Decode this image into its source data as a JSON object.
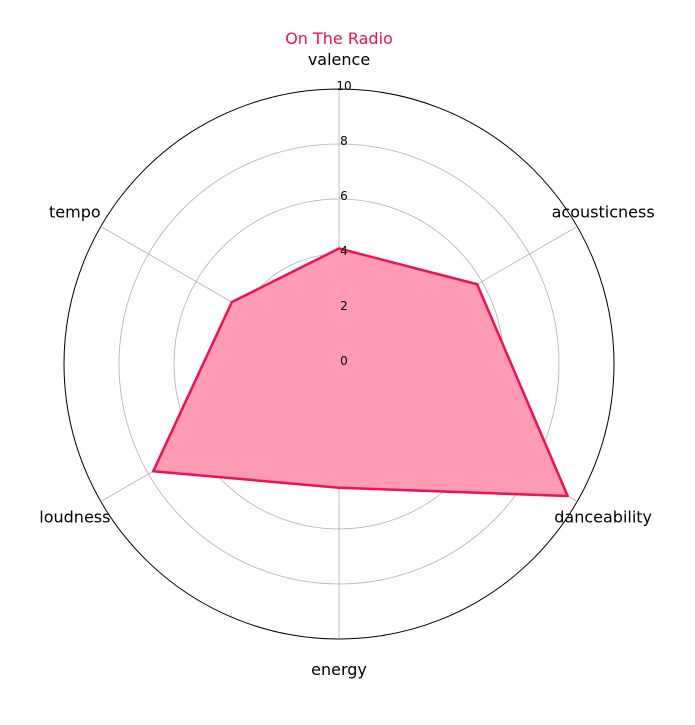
{
  "chart_data": {
    "type": "radar",
    "title": "On The Radio",
    "title_color": "#F0114F",
    "axes": [
      "valence",
      "acousticness",
      "danceability",
      "energy",
      "loudness",
      "tempo"
    ],
    "series": [
      {
        "values": [
          4.2,
          5.8,
          9.6,
          4.5,
          7.8,
          4.5
        ],
        "line_color": "#F0114F",
        "fill_color": "#FF9BB5"
      }
    ],
    "r_range": [
      0,
      10
    ],
    "r_ticks": [
      "0",
      "2",
      "4",
      "6",
      "8",
      "10"
    ],
    "grid": true
  }
}
